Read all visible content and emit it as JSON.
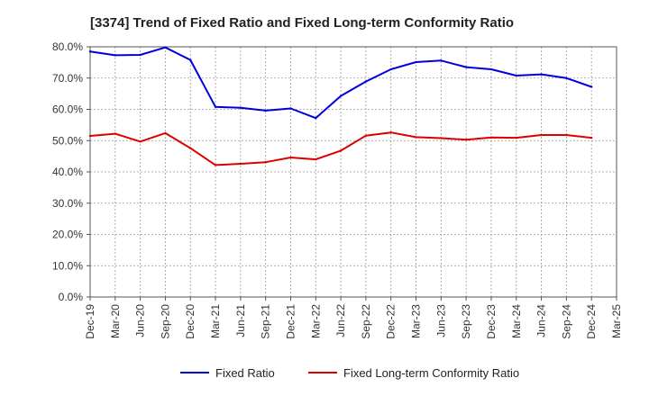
{
  "chart_data": {
    "type": "line",
    "title": "[3374]  Trend of Fixed Ratio and Fixed Long-term Conformity Ratio",
    "xlabel": "",
    "ylabel": "",
    "ylim": [
      0,
      80
    ],
    "y_ticks": [
      0,
      10,
      20,
      30,
      40,
      50,
      60,
      70,
      80
    ],
    "y_tick_labels": [
      "0.0%",
      "10.0%",
      "20.0%",
      "30.0%",
      "40.0%",
      "50.0%",
      "60.0%",
      "70.0%",
      "80.0%"
    ],
    "x_tick_labels": [
      "Dec-19",
      "Mar-20",
      "Jun-20",
      "Sep-20",
      "Dec-20",
      "Mar-21",
      "Jun-21",
      "Sep-21",
      "Dec-21",
      "Mar-22",
      "Jun-22",
      "Sep-22",
      "Dec-22",
      "Mar-23",
      "Jun-23",
      "Sep-23",
      "Dec-23",
      "Mar-24",
      "Jun-24",
      "Sep-24",
      "Dec-24",
      "Mar-25"
    ],
    "x": [
      "Dec-19",
      "Mar-20",
      "Jun-20",
      "Sep-20",
      "Dec-20",
      "Mar-21",
      "Jun-21",
      "Sep-21",
      "Dec-21",
      "Mar-22",
      "Jun-22",
      "Sep-22",
      "Dec-22",
      "Mar-23",
      "Jun-23",
      "Sep-23",
      "Dec-23",
      "Mar-24",
      "Jun-24",
      "Sep-24",
      "Dec-24"
    ],
    "grid": true,
    "legend_position": "bottom",
    "series": [
      {
        "name": "Fixed Ratio",
        "color": "#0000dd",
        "values": [
          78.5,
          77.3,
          77.4,
          79.8,
          75.8,
          60.8,
          60.5,
          59.6,
          60.3,
          57.2,
          64.3,
          68.9,
          72.8,
          75.1,
          75.6,
          73.5,
          72.8,
          70.8,
          71.2,
          70.0,
          67.2
        ]
      },
      {
        "name": "Fixed Long-term Conformity Ratio",
        "color": "#dd0000",
        "values": [
          51.5,
          52.2,
          49.7,
          52.4,
          47.6,
          42.2,
          42.6,
          43.1,
          44.6,
          44.0,
          46.8,
          51.6,
          52.6,
          51.1,
          50.8,
          50.3,
          51.0,
          50.9,
          51.8,
          51.8,
          50.9
        ]
      }
    ]
  }
}
